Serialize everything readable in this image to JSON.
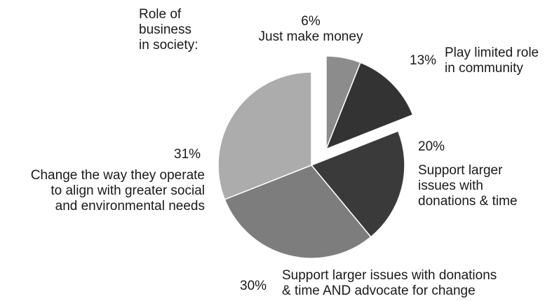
{
  "chart_data": {
    "type": "pie",
    "title_lines": [
      "Role of",
      "business",
      "in society:"
    ],
    "slices": [
      {
        "pct_label": "6%",
        "value": 6,
        "label_lines": [
          "Just make money"
        ],
        "color": "#8c8c8c",
        "exploded": true
      },
      {
        "pct_label": "13%",
        "value": 13,
        "label_lines": [
          "Play limited role",
          "in community"
        ],
        "color": "#333333",
        "exploded": true
      },
      {
        "pct_label": "20%",
        "value": 20,
        "label_lines": [
          "Support larger",
          "issues with",
          "donations & time"
        ],
        "color": "#3a3a3a",
        "exploded": false
      },
      {
        "pct_label": "30%",
        "value": 30,
        "label_lines": [
          "Support larger issues with donations",
          "& time AND advocate for change"
        ],
        "color": "#7d7d7d",
        "exploded": false
      },
      {
        "pct_label": "31%",
        "value": 31,
        "label_lines": [
          "Change the way they operate",
          "to align with greater social",
          "and environmental needs"
        ],
        "color": "#acacac",
        "exploded": false
      }
    ]
  }
}
